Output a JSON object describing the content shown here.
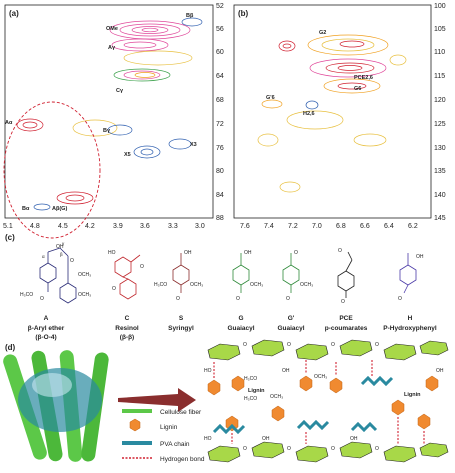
{
  "panel_a": {
    "label": "(a)",
    "x_ticks": [
      "5.1",
      "4.8",
      "4.5",
      "4.2",
      "3.9",
      "3.6",
      "3.3",
      "3.0"
    ],
    "y_ticks": [
      "52",
      "56",
      "60",
      "64",
      "68",
      "72",
      "76",
      "80",
      "84",
      "88"
    ],
    "peaks": [
      "Bβ",
      "OMe",
      "Aγ",
      "Cγ",
      "Aα",
      "Bγ",
      "X5",
      "X3",
      "Bα",
      "Aβ(G)"
    ]
  },
  "panel_b": {
    "label": "(b)",
    "x_ticks": [
      "7.6",
      "7.4",
      "7.2",
      "7.0",
      "6.8",
      "6.6",
      "6.4",
      "6.2"
    ],
    "y_ticks": [
      "100",
      "105",
      "110",
      "115",
      "120",
      "125",
      "130",
      "135",
      "140",
      "145"
    ],
    "peaks": [
      "G2",
      "PCE2,6",
      "G6",
      "G'6",
      "H2,6"
    ]
  },
  "panel_c": {
    "label": "(c)",
    "structures": [
      {
        "letter": "A",
        "name": "β-Aryl ether",
        "sub": "(β-O-4)",
        "color": "#2b2d78"
      },
      {
        "letter": "C",
        "name": "Resinol",
        "sub": "(β-β)",
        "color": "#c0282e"
      },
      {
        "letter": "S",
        "name": "Syringyl",
        "sub": "",
        "color": "#8b2d2d"
      },
      {
        "letter": "G",
        "name": "Guaiacyl",
        "sub": "",
        "color": "#2f8a3a"
      },
      {
        "letter": "G'",
        "name": "Guaiacyl",
        "sub": "",
        "color": "#2f8a3a"
      },
      {
        "letter": "PCE",
        "name": "p-coumarates",
        "sub": "",
        "color": "#222"
      },
      {
        "letter": "H",
        "name": "P-Hydroxyphenyl",
        "sub": "",
        "color": "#4b3aa8"
      }
    ],
    "chem": {
      "ome": "OCH₃",
      "meo": "H₃CO",
      "oh": "OH",
      "o": "O",
      "ho": "HO",
      "alpha": "α",
      "beta": "β",
      "gamma": "γ"
    }
  },
  "panel_d": {
    "label": "(d)",
    "legend": [
      "Cellulose fiber",
      "Lignin",
      "PVA chain",
      "Hydrogen bond"
    ],
    "lignin_text": "Lignin",
    "ome": "OCH₃",
    "meo": "H₃CO",
    "oh": "OH",
    "ho": "HO",
    "o": "O"
  },
  "colors": {
    "pink": "#e0489a",
    "orange": "#f0a020",
    "yellow": "#e8c040",
    "blue": "#3060b0",
    "green": "#3aa04a",
    "red": "#d02030",
    "teal": "#2a8aa0"
  }
}
